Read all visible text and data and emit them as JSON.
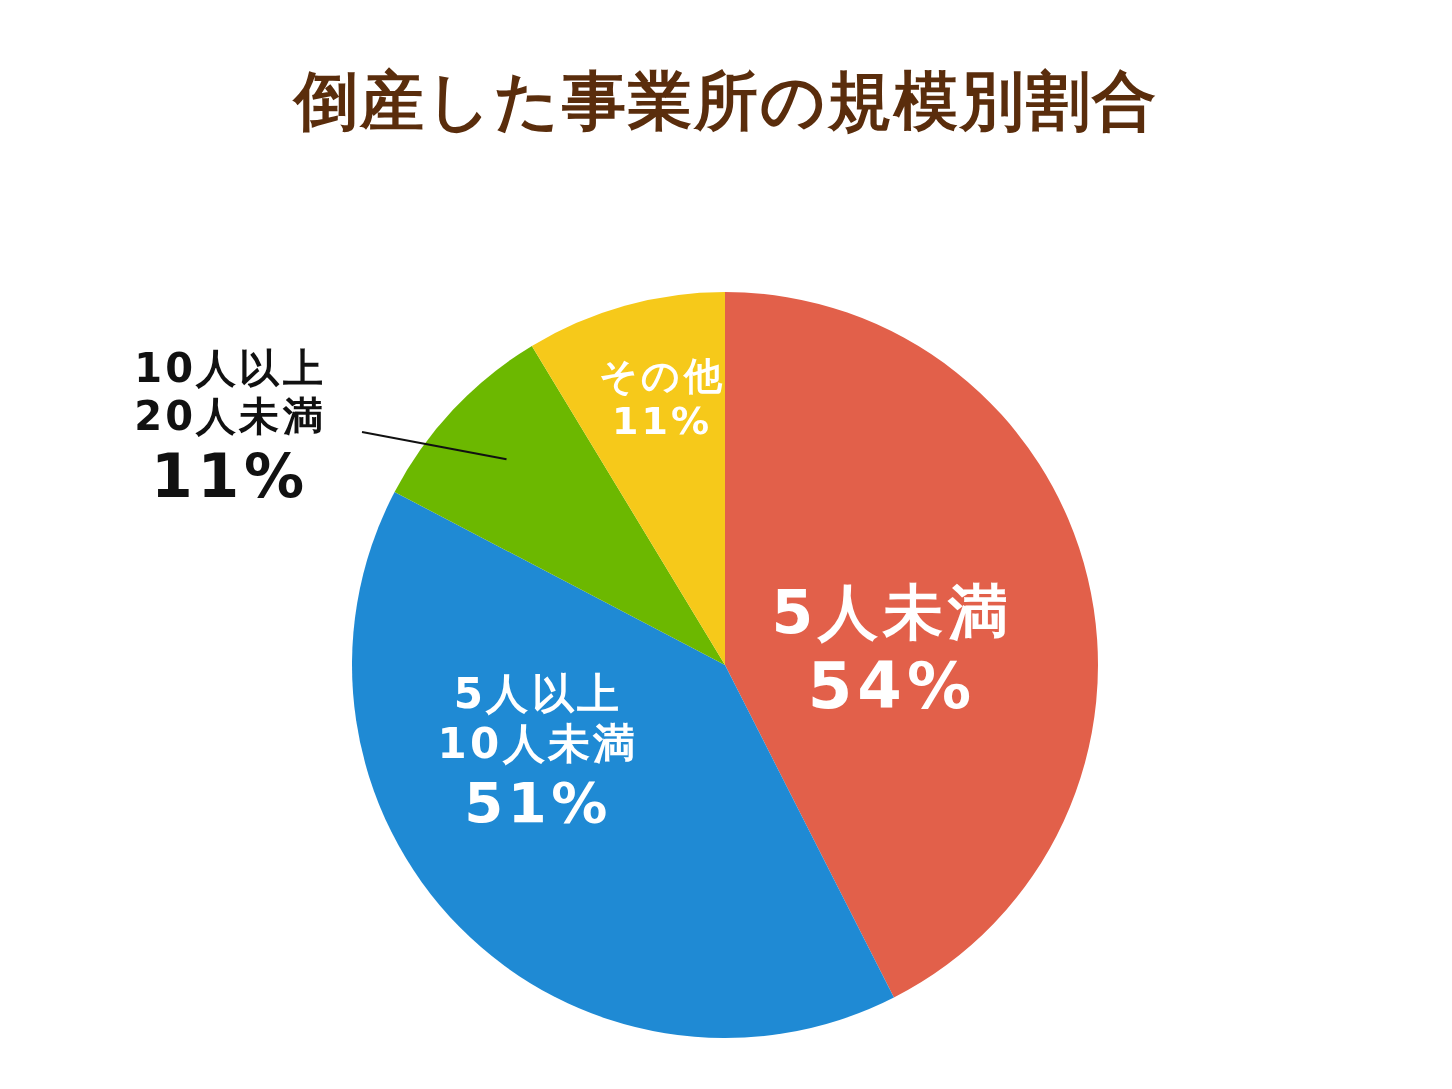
{
  "chart_data": {
    "type": "pie",
    "title": "倒産した事業所の規模別割合",
    "categories": [
      "5人未満",
      "5人以上\n10人未満",
      "10人以上\n20人未満",
      "その他"
    ],
    "values": [
      54,
      51,
      11,
      11
    ],
    "value_labels": [
      "54%",
      "51%",
      "11%",
      "11%"
    ],
    "colors": [
      "#e2604a",
      "#1f8ad4",
      "#6cb800",
      "#f6c91a"
    ]
  }
}
